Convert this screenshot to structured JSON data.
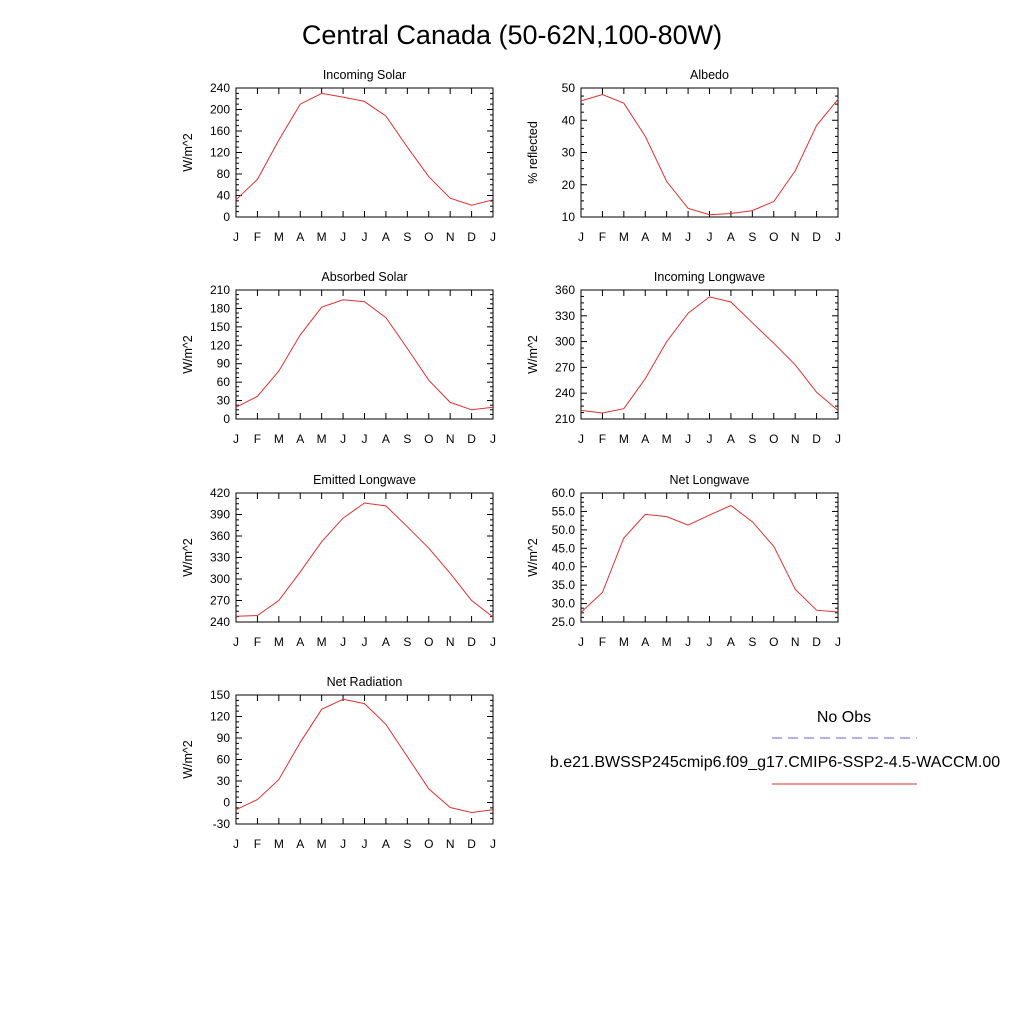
{
  "title": "Central Canada (50-62N,100-80W)",
  "months": [
    "J",
    "F",
    "M",
    "A",
    "M",
    "J",
    "J",
    "A",
    "S",
    "O",
    "N",
    "D",
    "J"
  ],
  "legend": {
    "obs_label": "No Obs",
    "obs_color": "#6666cc",
    "model_label": "b.e21.BWSSP245cmip6.f09_g17.CMIP6-SSP2-4.5-WACCM.00",
    "model_color": "#e03030"
  },
  "chart_data": [
    {
      "type": "line",
      "title": "Incoming Solar",
      "ylabel": "W/m^2",
      "ylim": [
        0,
        240
      ],
      "yticks": [
        "0",
        "40",
        "80",
        "120",
        "160",
        "200",
        "240"
      ],
      "x": [
        "J",
        "F",
        "M",
        "A",
        "M",
        "J",
        "J",
        "A",
        "S",
        "O",
        "N",
        "D",
        "J"
      ],
      "series": [
        {
          "values": [
            32,
            70,
            143,
            210,
            230,
            223,
            215,
            188,
            130,
            75,
            35,
            22,
            32
          ]
        }
      ]
    },
    {
      "type": "line",
      "title": "Albedo",
      "ylabel": "% reflected",
      "ylim": [
        10,
        50
      ],
      "yticks": [
        "10",
        "20",
        "30",
        "40",
        "50"
      ],
      "x": [
        "J",
        "F",
        "M",
        "A",
        "M",
        "J",
        "J",
        "A",
        "S",
        "O",
        "N",
        "D",
        "J"
      ],
      "series": [
        {
          "values": [
            46,
            48,
            45.3,
            35,
            21,
            12.7,
            10.7,
            11.1,
            12,
            14.8,
            24.3,
            38.4,
            46.5
          ]
        }
      ]
    },
    {
      "type": "line",
      "title": "Absorbed Solar",
      "ylabel": "W/m^2",
      "ylim": [
        0,
        210
      ],
      "yticks": [
        "0",
        "30",
        "60",
        "90",
        "120",
        "150",
        "180",
        "210"
      ],
      "x": [
        "J",
        "F",
        "M",
        "A",
        "M",
        "J",
        "J",
        "A",
        "S",
        "O",
        "N",
        "D",
        "J"
      ],
      "series": [
        {
          "values": [
            19,
            37,
            78,
            137,
            182,
            194,
            191,
            165,
            115,
            63,
            27,
            15,
            19
          ]
        }
      ]
    },
    {
      "type": "line",
      "title": "Incoming Longwave",
      "ylabel": "W/m^2",
      "ylim": [
        210,
        360
      ],
      "yticks": [
        "210",
        "240",
        "270",
        "300",
        "330",
        "360"
      ],
      "x": [
        "J",
        "F",
        "M",
        "A",
        "M",
        "J",
        "J",
        "A",
        "S",
        "O",
        "N",
        "D",
        "J"
      ],
      "series": [
        {
          "values": [
            220,
            217,
            222,
            257,
            300,
            333,
            352,
            346,
            322,
            298,
            273,
            241,
            220
          ]
        }
      ]
    },
    {
      "type": "line",
      "title": "Emitted Longwave",
      "ylabel": "W/m^2",
      "ylim": [
        240,
        420
      ],
      "yticks": [
        "240",
        "270",
        "300",
        "330",
        "360",
        "390",
        "420"
      ],
      "x": [
        "J",
        "F",
        "M",
        "A",
        "M",
        "J",
        "J",
        "A",
        "S",
        "O",
        "N",
        "D",
        "J"
      ],
      "series": [
        {
          "values": [
            248,
            249,
            270,
            310,
            352,
            385,
            406,
            402,
            373,
            343,
            308,
            270,
            247
          ]
        }
      ]
    },
    {
      "type": "line",
      "title": "Net Longwave",
      "ylabel": "W/m^2",
      "ylim": [
        25,
        60
      ],
      "yticks": [
        "25.0",
        "30.0",
        "35.0",
        "40.0",
        "45.0",
        "50.0",
        "55.0",
        "60.0"
      ],
      "x": [
        "J",
        "F",
        "M",
        "A",
        "M",
        "J",
        "J",
        "A",
        "S",
        "O",
        "N",
        "D",
        "J"
      ],
      "series": [
        {
          "values": [
            27.6,
            33,
            47.8,
            54.2,
            53.6,
            51.3,
            54,
            56.6,
            52.2,
            45.5,
            33.9,
            28.2,
            27.7
          ]
        }
      ]
    },
    {
      "type": "line",
      "title": "Net Radiation",
      "ylabel": "W/m^2",
      "ylim": [
        -30,
        150
      ],
      "yticks": [
        "-30",
        "0",
        "30",
        "60",
        "90",
        "120",
        "150"
      ],
      "x": [
        "J",
        "F",
        "M",
        "A",
        "M",
        "J",
        "J",
        "A",
        "S",
        "O",
        "N",
        "D",
        "J"
      ],
      "series": [
        {
          "values": [
            -10,
            4,
            32,
            84,
            130,
            144,
            138,
            109,
            64,
            19,
            -7,
            -14,
            -10
          ]
        }
      ]
    }
  ]
}
